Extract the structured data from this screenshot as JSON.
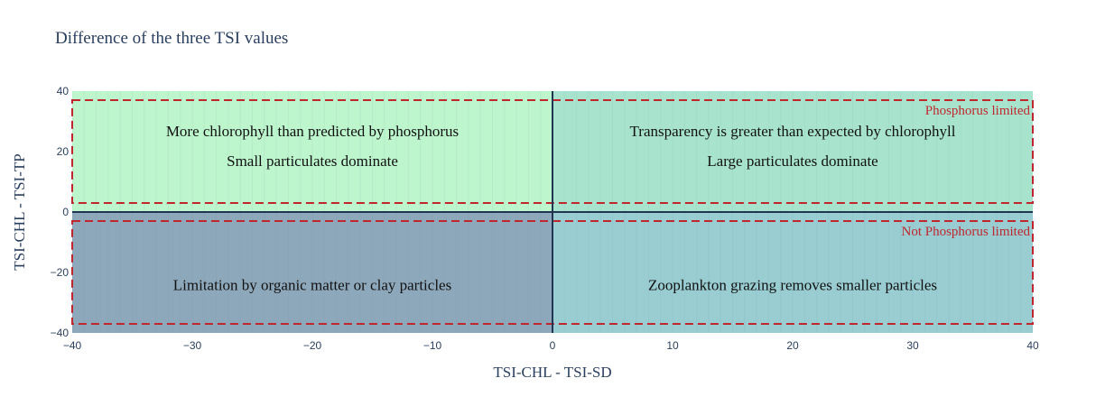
{
  "chart_data": {
    "type": "scatter",
    "title": "Difference of the three TSI values",
    "xlabel": "TSI-CHL - TSI-SD",
    "ylabel": "TSI-CHL - TSI-TP",
    "xlim": [
      -40,
      40
    ],
    "ylim": [
      -40,
      40
    ],
    "xticks": [
      -40,
      -30,
      -20,
      -10,
      0,
      10,
      20,
      30,
      40
    ],
    "yticks": [
      -40,
      -20,
      0,
      20,
      40
    ],
    "xtick_labels": [
      "−40",
      "−30",
      "−20",
      "−10",
      "0",
      "10",
      "20",
      "30",
      "40"
    ],
    "ytick_labels": [
      "−40",
      "−20",
      "0",
      "20",
      "40"
    ],
    "grid": false,
    "quadrants": [
      {
        "x": [
          -40,
          0
        ],
        "y": [
          0,
          40
        ],
        "color": "#bdf5cd",
        "lines": [
          "More chlorophyll than predicted by phosphorus",
          "Small particulates dominate"
        ]
      },
      {
        "x": [
          0,
          40
        ],
        "y": [
          0,
          40
        ],
        "color": "#a8e4cd",
        "lines": [
          "Transparency is greater than expected by chlorophyll",
          "Large particulates dominate"
        ]
      },
      {
        "x": [
          -40,
          0
        ],
        "y": [
          -40,
          0
        ],
        "color": "#8ea8bb",
        "lines": [
          "Limitation by organic matter or clay particles"
        ]
      },
      {
        "x": [
          0,
          40
        ],
        "y": [
          -40,
          0
        ],
        "color": "#99cdd2",
        "lines": [
          "Zooplankton grazing removes smaller particles"
        ]
      }
    ],
    "limit_regions": [
      {
        "label": "Phosphorus limited",
        "x": [
          -40,
          40
        ],
        "y": [
          3,
          37
        ],
        "color": "#c0272d"
      },
      {
        "label": "Not Phosphorus limited",
        "x": [
          -40,
          40
        ],
        "y": [
          -37,
          -3
        ],
        "color": "#c0272d"
      }
    ],
    "axis_line_color": "#1f3552"
  }
}
